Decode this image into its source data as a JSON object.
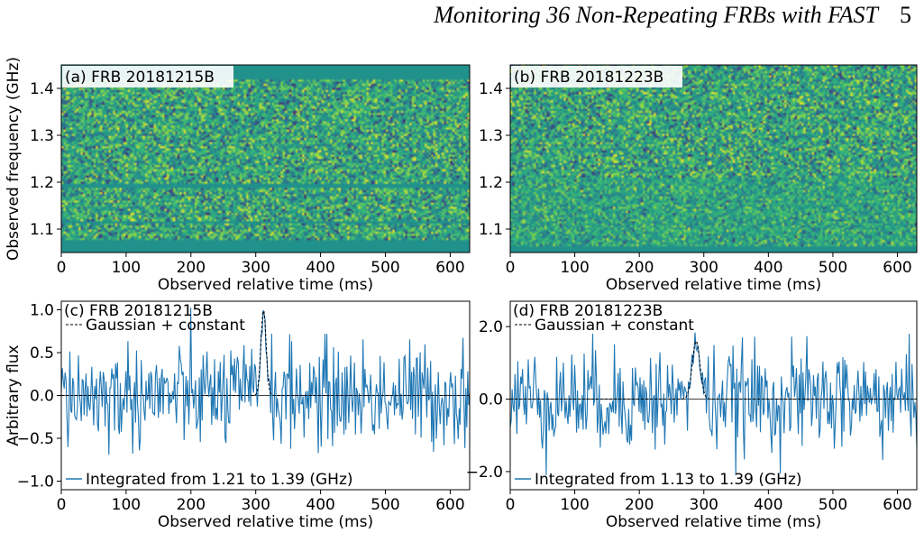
{
  "header": {
    "running_title": "Monitoring 36 Non-Repeating FRBs with FAST",
    "page_number": "5"
  },
  "colors": {
    "line": "#1f77b4",
    "waterfall_base": "#218f8c",
    "dashed": "#000000"
  },
  "chart_data": [
    {
      "type": "heatmap",
      "panel_label": "(a) FRB 20181215B",
      "xlabel": "Observed relative time (ms)",
      "ylabel": "Observed frequency (GHz)",
      "xlim": [
        0,
        630
      ],
      "ylim": [
        1.05,
        1.45
      ],
      "xticks": [
        "0",
        "100",
        "200",
        "300",
        "400",
        "500",
        "600"
      ],
      "yticks": [
        "1.1",
        "1.2",
        "1.3",
        "1.4"
      ],
      "flagged_bands_ghz": [
        [
          1.05,
          1.075
        ],
        [
          1.112,
          1.117
        ],
        [
          1.19,
          1.198
        ],
        [
          1.42,
          1.45
        ]
      ]
    },
    {
      "type": "heatmap",
      "panel_label": "(b) FRB 20181223B",
      "xlabel": "Observed relative time (ms)",
      "ylabel": "",
      "xlim": [
        0,
        630
      ],
      "ylim": [
        1.05,
        1.45
      ],
      "xticks": [
        "0",
        "100",
        "200",
        "300",
        "400",
        "500",
        "600"
      ],
      "yticks": [
        "1.1",
        "1.2",
        "1.3",
        "1.4"
      ],
      "flagged_bands_ghz": [
        [
          1.05,
          1.065
        ]
      ]
    },
    {
      "type": "line",
      "panel_label": "(c) FRB 20181215B",
      "xlabel": "Observed relative time (ms)",
      "ylabel": "Arbitrary flux",
      "xlim": [
        0,
        630
      ],
      "ylim": [
        -1.1,
        1.1
      ],
      "xticks": [
        "0",
        "100",
        "200",
        "300",
        "400",
        "500",
        "600"
      ],
      "yticks": [
        -1.0,
        -0.5,
        0.0,
        0.5,
        1.0
      ],
      "ytick_labels": [
        "−1.0",
        "−0.5",
        "0.0",
        "0.5",
        "1.0"
      ],
      "legend_fit": "Gaussian + constant",
      "legend_data": "Integrated from 1.21 to 1.39 (GHz)",
      "pulse": {
        "center_ms": 312,
        "width_ms": 4,
        "amplitude": 1.0
      },
      "noise_sigma": 0.3,
      "extreme_min": -0.95
    },
    {
      "type": "line",
      "panel_label": "(d) FRB 20181223B",
      "xlabel": "Observed relative time (ms)",
      "ylabel": "",
      "xlim": [
        0,
        630
      ],
      "ylim": [
        -2.5,
        2.7
      ],
      "xticks": [
        "0",
        "100",
        "200",
        "300",
        "400",
        "500",
        "600"
      ],
      "yticks": [
        -2.0,
        0.0,
        2.0
      ],
      "ytick_labels": [
        "−2.0",
        "0.0",
        "2.0"
      ],
      "legend_fit": "Gaussian + constant",
      "legend_data": "Integrated from 1.13 to 1.39 (GHz)",
      "pulse": {
        "center_ms": 288,
        "width_ms": 6,
        "amplitude": 1.6
      },
      "noise_sigma": 0.7,
      "extreme_min": -2.1
    }
  ]
}
